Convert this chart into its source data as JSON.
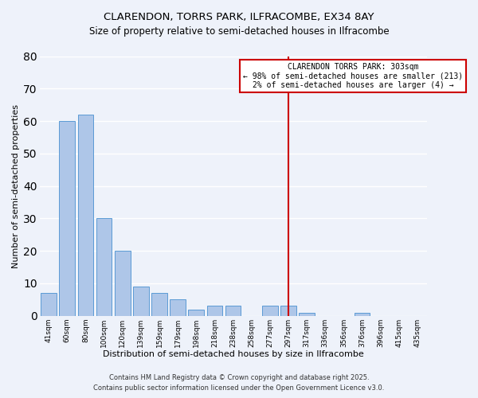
{
  "title": "CLARENDON, TORRS PARK, ILFRACOMBE, EX34 8AY",
  "subtitle": "Size of property relative to semi-detached houses in Ilfracombe",
  "xlabel": "Distribution of semi-detached houses by size in Ilfracombe",
  "ylabel": "Number of semi-detached properties",
  "bar_labels": [
    "41sqm",
    "60sqm",
    "80sqm",
    "100sqm",
    "120sqm",
    "139sqm",
    "159sqm",
    "179sqm",
    "198sqm",
    "218sqm",
    "238sqm",
    "258sqm",
    "277sqm",
    "297sqm",
    "317sqm",
    "336sqm",
    "356sqm",
    "376sqm",
    "396sqm",
    "415sqm",
    "435sqm"
  ],
  "bar_values": [
    7,
    60,
    62,
    30,
    20,
    9,
    7,
    5,
    2,
    3,
    3,
    0,
    3,
    3,
    1,
    0,
    0,
    1,
    0,
    0,
    0
  ],
  "bar_color": "#aec6e8",
  "bar_edge_color": "#5b9bd5",
  "vline_index": 13,
  "vline_color": "#cc0000",
  "ylim": [
    0,
    80
  ],
  "annotation_title": "CLARENDON TORRS PARK: 303sqm",
  "annotation_line1": "← 98% of semi-detached houses are smaller (213)",
  "annotation_line2": "2% of semi-detached houses are larger (4) →",
  "annotation_box_color": "#ffffff",
  "annotation_box_edge": "#cc0000",
  "footer1": "Contains HM Land Registry data © Crown copyright and database right 2025.",
  "footer2": "Contains public sector information licensed under the Open Government Licence v3.0.",
  "bg_color": "#eef2fa",
  "grid_color": "#ffffff",
  "title_fontsize": 9.5,
  "subtitle_fontsize": 8.5,
  "axis_label_fontsize": 8,
  "tick_fontsize": 6.5,
  "annotation_fontsize": 7,
  "footer_fontsize": 6
}
